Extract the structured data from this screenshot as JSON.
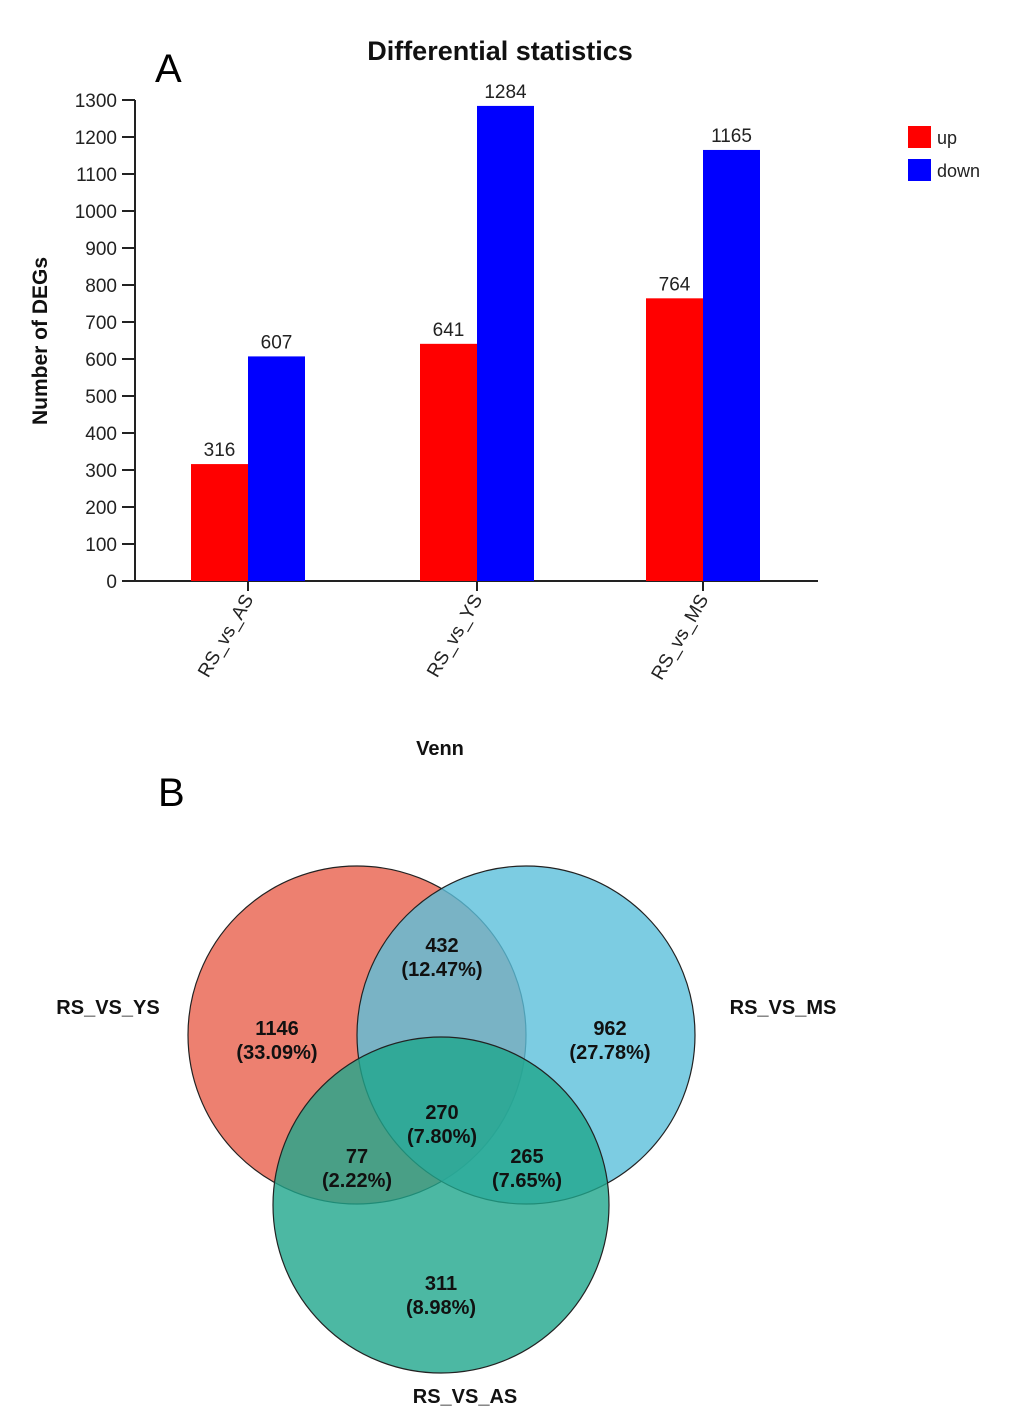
{
  "panel_labels": {
    "a": "A",
    "b": "B"
  },
  "chart_data": [
    {
      "type": "bar",
      "title": "Differential statistics",
      "xlabel": "Venn",
      "ylabel": "Number of DEGs",
      "categories": [
        "RS_vs_AS",
        "RS_vs_YS",
        "RS_vs_MS"
      ],
      "series": [
        {
          "name": "up",
          "color": "#ff0000",
          "values": [
            316,
            641,
            764
          ]
        },
        {
          "name": "down",
          "color": "#0000ff",
          "values": [
            607,
            1284,
            1165
          ]
        }
      ],
      "ylim": [
        0,
        1300
      ],
      "yticks": [
        0,
        100,
        200,
        300,
        400,
        500,
        600,
        700,
        800,
        900,
        1000,
        1100,
        1200,
        1300
      ],
      "data_labels": true,
      "legend": {
        "position": "top-right",
        "entries": [
          "up",
          "down"
        ]
      },
      "grid": false
    },
    {
      "type": "venn",
      "sets": [
        {
          "name": "RS_VS_YS",
          "color": "#e8604c"
        },
        {
          "name": "RS_VS_MS",
          "color": "#5bbfdb"
        },
        {
          "name": "RS_VS_AS",
          "color": "#1fa68c"
        }
      ],
      "regions": [
        {
          "id": "ys_only",
          "sets": [
            "RS_VS_YS"
          ],
          "count": "1146",
          "percent": "(33.09%)"
        },
        {
          "id": "ms_only",
          "sets": [
            "RS_VS_MS"
          ],
          "count": "962",
          "percent": "(27.78%)"
        },
        {
          "id": "as_only",
          "sets": [
            "RS_VS_AS"
          ],
          "count": "311",
          "percent": "(8.98%)"
        },
        {
          "id": "ys_ms",
          "sets": [
            "RS_VS_YS",
            "RS_VS_MS"
          ],
          "count": "432",
          "percent": "(12.47%)"
        },
        {
          "id": "ys_as",
          "sets": [
            "RS_VS_YS",
            "RS_VS_AS"
          ],
          "count": "77",
          "percent": "(2.22%)"
        },
        {
          "id": "ms_as",
          "sets": [
            "RS_VS_MS",
            "RS_VS_AS"
          ],
          "count": "265",
          "percent": "(7.65%)"
        },
        {
          "id": "all",
          "sets": [
            "RS_VS_YS",
            "RS_VS_MS",
            "RS_VS_AS"
          ],
          "count": "270",
          "percent": "(7.80%)"
        }
      ]
    }
  ]
}
